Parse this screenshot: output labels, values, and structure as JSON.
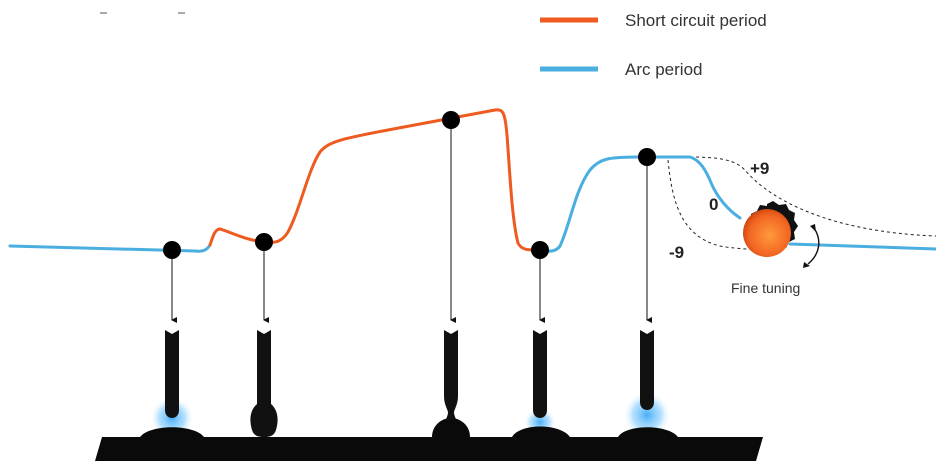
{
  "legend": {
    "short_circuit": {
      "label": "Short circuit period",
      "color": "#ee5a1f"
    },
    "arc": {
      "label": "Arc period",
      "color": "#4aaee0"
    }
  },
  "tuning": {
    "plus_label": "+9",
    "zero_label": "0",
    "minus_label": "-9",
    "caption": "Fine tuning",
    "knob_color": "#f26522"
  },
  "stages": [
    "arc",
    "short-circuit-start",
    "short-circuit-peak",
    "arc-restart",
    "arc-plateau"
  ],
  "colors": {
    "dot": "#000000",
    "electrode": "#111111",
    "glow": "#3fa9f5"
  }
}
